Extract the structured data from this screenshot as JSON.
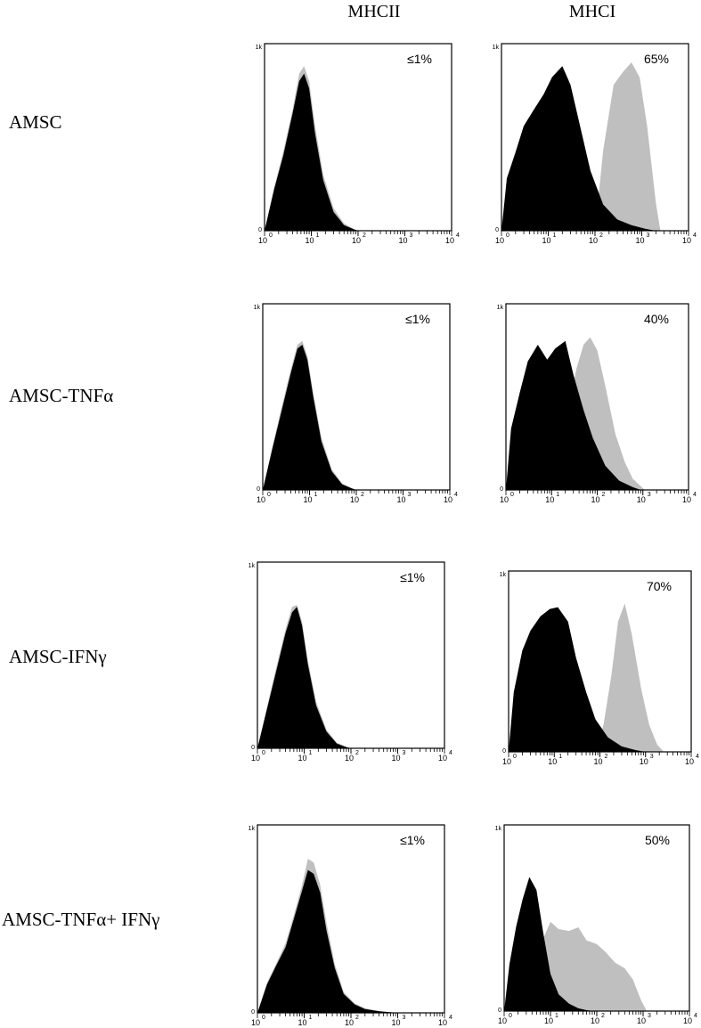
{
  "columns": [
    "MHCII",
    "MHCI"
  ],
  "rows": [
    "AMSC",
    "AMSC-TNFα",
    "AMSC-IFNγ",
    "AMSC-TNFα+ IFNγ"
  ],
  "colors": {
    "isotype": "#000000",
    "stained": "#bfbfbf"
  },
  "chart_data": [
    {
      "type": "area",
      "row": "AMSC",
      "column": "MHCII",
      "annotation": "≤1%",
      "x_scale": "log",
      "xlim": [
        1,
        10000
      ],
      "ylim": [
        0,
        1000
      ],
      "x_ticks": [
        "10^0",
        "10^1",
        "10^2",
        "10^3",
        "10^4"
      ],
      "y_ticks": [
        "0",
        "1k"
      ],
      "series": [
        {
          "fill": "#bfbfbf",
          "x": [
            1,
            1.6,
            2.5,
            4,
            5.5,
            7,
            9,
            12,
            18,
            30,
            50,
            80,
            100
          ],
          "y": [
            0,
            230,
            420,
            650,
            840,
            880,
            800,
            560,
            300,
            120,
            40,
            10,
            0
          ]
        },
        {
          "fill": "#000000",
          "x": [
            1,
            1.6,
            2.5,
            4,
            5.5,
            7,
            9,
            12,
            18,
            30,
            50,
            80,
            100
          ],
          "y": [
            0,
            220,
            400,
            630,
            800,
            840,
            760,
            520,
            270,
            100,
            30,
            8,
            0
          ]
        }
      ]
    },
    {
      "type": "area",
      "row": "AMSC",
      "column": "MHCI",
      "annotation": "65%",
      "x_scale": "log",
      "xlim": [
        1,
        10000
      ],
      "ylim": [
        0,
        1000
      ],
      "x_ticks": [
        "10^0",
        "10^1",
        "10^2",
        "10^3",
        "10^4"
      ],
      "y_ticks": [
        "0",
        "1k"
      ],
      "series": [
        {
          "fill": "#bfbfbf",
          "x": [
            100,
            150,
            250,
            400,
            600,
            900,
            1300,
            2000,
            2500
          ],
          "y": [
            0,
            430,
            780,
            850,
            900,
            820,
            560,
            150,
            0
          ]
        },
        {
          "fill": "#000000",
          "x": [
            1,
            1.3,
            2,
            3,
            5,
            8,
            12,
            20,
            30,
            50,
            80,
            150,
            300,
            600,
            1200,
            2000
          ],
          "y": [
            0,
            280,
            420,
            560,
            650,
            730,
            820,
            880,
            780,
            540,
            320,
            140,
            60,
            30,
            10,
            0
          ]
        }
      ]
    },
    {
      "type": "area",
      "row": "AMSC-TNFα",
      "column": "MHCII",
      "annotation": "≤1%",
      "x_scale": "log",
      "xlim": [
        1,
        10000
      ],
      "ylim": [
        0,
        1000
      ],
      "x_ticks": [
        "10^0",
        "10^1",
        "10^2",
        "10^3",
        "10^4"
      ],
      "y_ticks": [
        "0",
        "1k"
      ],
      "series": [
        {
          "fill": "#bfbfbf",
          "x": [
            1,
            1.6,
            2.5,
            4,
            5.5,
            7,
            9,
            12,
            18,
            30,
            50,
            80,
            100
          ],
          "y": [
            0,
            230,
            440,
            650,
            780,
            800,
            720,
            520,
            280,
            110,
            35,
            10,
            0
          ]
        },
        {
          "fill": "#000000",
          "x": [
            1,
            1.6,
            2.5,
            4,
            5.5,
            7,
            9,
            12,
            18,
            30,
            50,
            80,
            100
          ],
          "y": [
            0,
            220,
            420,
            630,
            760,
            780,
            700,
            500,
            260,
            100,
            30,
            8,
            0
          ]
        }
      ]
    },
    {
      "type": "area",
      "row": "AMSC-TNFα",
      "column": "MHCI",
      "annotation": "40%",
      "x_scale": "log",
      "xlim": [
        1,
        10000
      ],
      "ylim": [
        0,
        1000
      ],
      "x_ticks": [
        "10^0",
        "10^1",
        "10^2",
        "10^3",
        "10^4"
      ],
      "y_ticks": [
        "0",
        "1k"
      ],
      "series": [
        {
          "fill": "#bfbfbf",
          "x": [
            10,
            20,
            35,
            50,
            70,
            100,
            150,
            250,
            400,
            600,
            900,
            1100
          ],
          "y": [
            0,
            350,
            650,
            780,
            820,
            750,
            560,
            300,
            150,
            60,
            20,
            0
          ]
        },
        {
          "fill": "#000000",
          "x": [
            1,
            1.3,
            2,
            3,
            5,
            8,
            12,
            20,
            30,
            50,
            80,
            150,
            300,
            600,
            900
          ],
          "y": [
            0,
            330,
            520,
            690,
            780,
            700,
            760,
            800,
            620,
            430,
            280,
            130,
            50,
            15,
            0
          ]
        }
      ]
    },
    {
      "type": "area",
      "row": "AMSC-IFNγ",
      "column": "MHCII",
      "annotation": "≤1%",
      "x_scale": "log",
      "xlim": [
        1,
        10000
      ],
      "ylim": [
        0,
        1000
      ],
      "x_ticks": [
        "10^0",
        "10^1",
        "10^2",
        "10^3",
        "10^4"
      ],
      "y_ticks": [
        "0",
        "1k"
      ],
      "series": [
        {
          "fill": "#bfbfbf",
          "x": [
            1,
            1.6,
            2.5,
            4,
            5.5,
            7,
            9,
            12,
            18,
            30,
            50,
            80,
            100
          ],
          "y": [
            0,
            220,
            430,
            640,
            760,
            770,
            680,
            470,
            250,
            100,
            30,
            8,
            0
          ]
        },
        {
          "fill": "#000000",
          "x": [
            1,
            1.6,
            2.5,
            4,
            5.5,
            7,
            9,
            12,
            18,
            30,
            50,
            80,
            100
          ],
          "y": [
            0,
            210,
            410,
            620,
            730,
            760,
            660,
            450,
            230,
            90,
            25,
            6,
            0
          ]
        }
      ]
    },
    {
      "type": "area",
      "row": "AMSC-IFNγ",
      "column": "MHCI",
      "annotation": "70%",
      "x_scale": "log",
      "xlim": [
        1,
        10000
      ],
      "ylim": [
        0,
        1000
      ],
      "x_ticks": [
        "10^0",
        "10^1",
        "10^2",
        "10^3",
        "10^4"
      ],
      "y_ticks": [
        "0",
        "1k"
      ],
      "series": [
        {
          "fill": "#bfbfbf",
          "x": [
            80,
            120,
            180,
            250,
            350,
            500,
            800,
            1200,
            1800,
            2500
          ],
          "y": [
            0,
            150,
            430,
            720,
            820,
            650,
            350,
            150,
            40,
            0
          ]
        },
        {
          "fill": "#000000",
          "x": [
            1,
            1.3,
            2,
            3,
            5,
            8,
            12,
            20,
            30,
            50,
            80,
            150,
            300,
            600,
            1000
          ],
          "y": [
            0,
            330,
            560,
            670,
            750,
            790,
            800,
            720,
            520,
            330,
            180,
            80,
            30,
            10,
            0
          ]
        }
      ]
    },
    {
      "type": "area",
      "row": "AMSC-TNFα+ IFNγ",
      "column": "MHCII",
      "annotation": "≤1%",
      "x_scale": "log",
      "xlim": [
        1,
        10000
      ],
      "ylim": [
        0,
        1000
      ],
      "x_ticks": [
        "10^0",
        "10^1",
        "10^2",
        "10^3",
        "10^4"
      ],
      "y_ticks": [
        "0",
        "1k"
      ],
      "series": [
        {
          "fill": "#bfbfbf",
          "x": [
            1,
            1.6,
            2.5,
            4,
            6,
            9,
            12,
            16,
            22,
            30,
            45,
            70,
            120,
            200,
            400,
            1000
          ],
          "y": [
            0,
            160,
            260,
            370,
            520,
            680,
            820,
            800,
            680,
            480,
            260,
            110,
            50,
            25,
            10,
            0
          ]
        },
        {
          "fill": "#000000",
          "x": [
            1,
            1.6,
            2.5,
            4,
            6,
            9,
            12,
            16,
            22,
            30,
            45,
            70,
            120,
            200,
            400,
            1000
          ],
          "y": [
            0,
            150,
            250,
            350,
            500,
            650,
            760,
            740,
            640,
            440,
            240,
            100,
            45,
            20,
            8,
            0
          ]
        }
      ]
    },
    {
      "type": "area",
      "row": "AMSC-TNFα+ IFNγ",
      "column": "MHCI",
      "annotation": "50%",
      "x_scale": "log",
      "xlim": [
        1,
        10000
      ],
      "ylim": [
        0,
        1000
      ],
      "x_ticks": [
        "10^0",
        "10^1",
        "10^2",
        "10^3",
        "10^4"
      ],
      "y_ticks": [
        "0",
        "1k"
      ],
      "series": [
        {
          "fill": "#bfbfbf",
          "x": [
            4,
            6,
            10,
            15,
            25,
            40,
            60,
            100,
            150,
            250,
            400,
            600,
            900,
            1200
          ],
          "y": [
            0,
            350,
            480,
            440,
            430,
            450,
            380,
            360,
            320,
            260,
            230,
            170,
            60,
            0
          ]
        },
        {
          "fill": "#000000",
          "x": [
            1,
            1.3,
            1.8,
            2.5,
            3.5,
            5,
            7,
            10,
            15,
            25,
            40,
            60,
            90
          ],
          "y": [
            0,
            250,
            450,
            600,
            720,
            650,
            420,
            200,
            90,
            40,
            15,
            5,
            0
          ]
        }
      ]
    }
  ]
}
